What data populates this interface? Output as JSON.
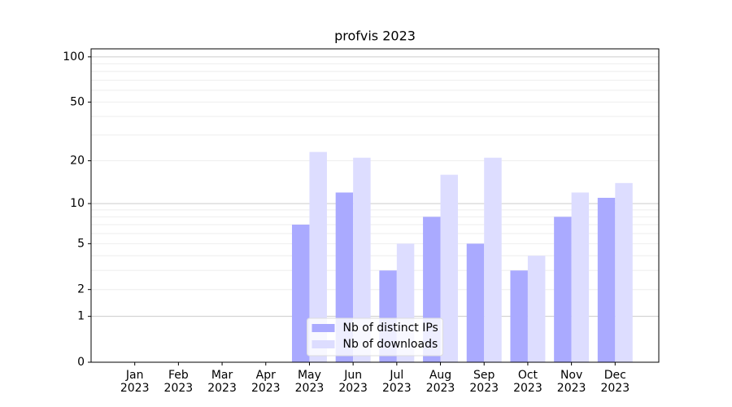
{
  "chart_data": {
    "type": "bar",
    "title": "profvis 2023",
    "categories": [
      "Jan\n2023",
      "Feb\n2023",
      "Mar\n2023",
      "Apr\n2023",
      "May\n2023",
      "Jun\n2023",
      "Jul\n2023",
      "Aug\n2023",
      "Sep\n2023",
      "Oct\n2023",
      "Nov\n2023",
      "Dec\n2023"
    ],
    "series": [
      {
        "name": "Nb of distinct IPs",
        "color": "#aaaaff",
        "values": [
          0,
          0,
          0,
          0,
          7,
          12,
          3,
          8,
          5,
          3,
          8,
          11
        ]
      },
      {
        "name": "Nb of downloads",
        "color": "#ddddff",
        "values": [
          0,
          0,
          0,
          0,
          23,
          21,
          5,
          16,
          21,
          4,
          12,
          14
        ]
      }
    ],
    "yscale": "log1p",
    "ylim": [
      0,
      113
    ],
    "yticks": [
      0,
      1,
      2,
      5,
      10,
      20,
      50,
      100
    ],
    "major_grid": [
      1,
      10,
      100
    ],
    "minor_grid": [
      2,
      3,
      4,
      5,
      6,
      7,
      8,
      9,
      20,
      30,
      40,
      50,
      60,
      70,
      80,
      90
    ],
    "legend": "lower center"
  }
}
